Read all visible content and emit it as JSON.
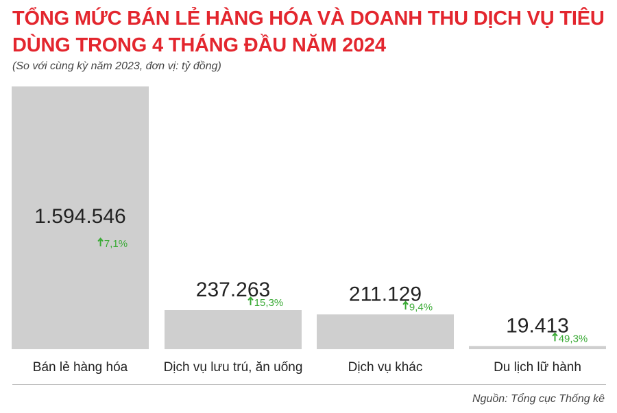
{
  "header": {
    "title": "TỔNG MỨC BÁN LẺ HÀNG HÓA VÀ DOANH THU DỊCH VỤ TIÊU DÙNG TRONG 4 THÁNG ĐẦU NĂM 2024",
    "subtitle": "(So với cùng kỳ năm 2023, đơn vị: tỷ đồng)"
  },
  "footer": {
    "source": "Nguồn: Tổng cục Thống kê"
  },
  "colors": {
    "title": "#e3262e",
    "bar": "#cfcfcf",
    "growth": "#3aaa35",
    "value_text": "#222222"
  },
  "chart_data": {
    "type": "bar",
    "title": "TỔNG MỨC BÁN LẺ HÀNG HÓA VÀ DOANH THU DỊCH VỤ TIÊU DÙNG TRONG 4 THÁNG ĐẦU NĂM 2024",
    "subtitle": "(So với cùng kỳ năm 2023, đơn vị: tỷ đồng)",
    "categories": [
      "Bán lẻ hàng hóa",
      "Dịch vụ lưu trú, ăn uống",
      "Dịch vụ khác",
      "Du lịch lữ hành"
    ],
    "values": [
      1594546,
      237263,
      211129,
      19413
    ],
    "value_labels": [
      "1.594.546",
      "237.263",
      "211.129",
      "19.413"
    ],
    "growth_labels": [
      "7,1%",
      "15,3%",
      "9,4%",
      "49,3%"
    ],
    "growth_icon": "arrow-up-icon",
    "ylim": [
      0,
      1594546
    ],
    "grid": false,
    "legend": "none"
  }
}
